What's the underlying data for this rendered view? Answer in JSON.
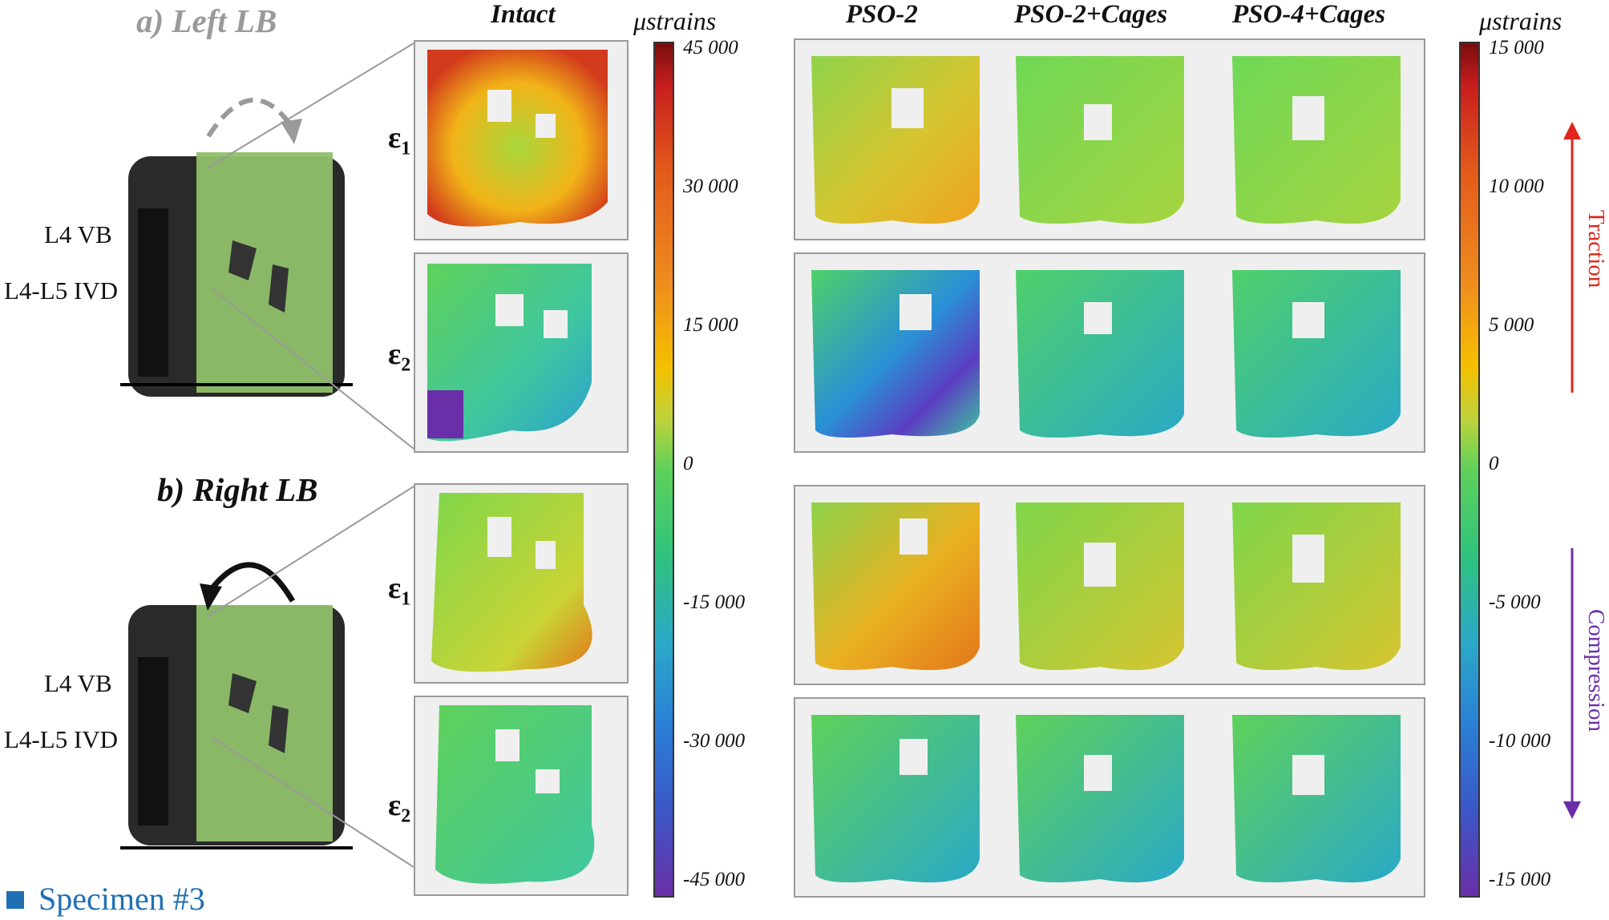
{
  "sections": {
    "left": {
      "title": "a) Left LB",
      "color": "#9a9a9a"
    },
    "right": {
      "title": "b) Right LB",
      "color": "#111111"
    }
  },
  "anatomy": {
    "vb": "L4 VB",
    "ivd": "L4-L5 IVD"
  },
  "strain_rows": {
    "e1": "ε",
    "e1_sub": "1",
    "e2": "ε",
    "e2_sub": "2"
  },
  "columns": {
    "intact": "Intact",
    "pso2": "PSO-2",
    "pso2_cages": "PSO-2+Cages",
    "pso4_cages": "PSO-4+Cages"
  },
  "colorbars": {
    "unit": "μstrains",
    "intact_ticks": [
      "45 000",
      "30 000",
      "15 000",
      "0",
      "-15 000",
      "-30 000",
      "-45 000"
    ],
    "pso_ticks": [
      "15 000",
      "10 000",
      "5 000",
      "0",
      "-5 000",
      "-10 000",
      "-15 000"
    ]
  },
  "annotations": {
    "traction": "Traction",
    "traction_color": "#e0261d",
    "compression": "Compression",
    "compression_color": "#6a2fa8"
  },
  "specimen": {
    "label": "Specimen #3",
    "color": "#1f6fb3"
  }
}
